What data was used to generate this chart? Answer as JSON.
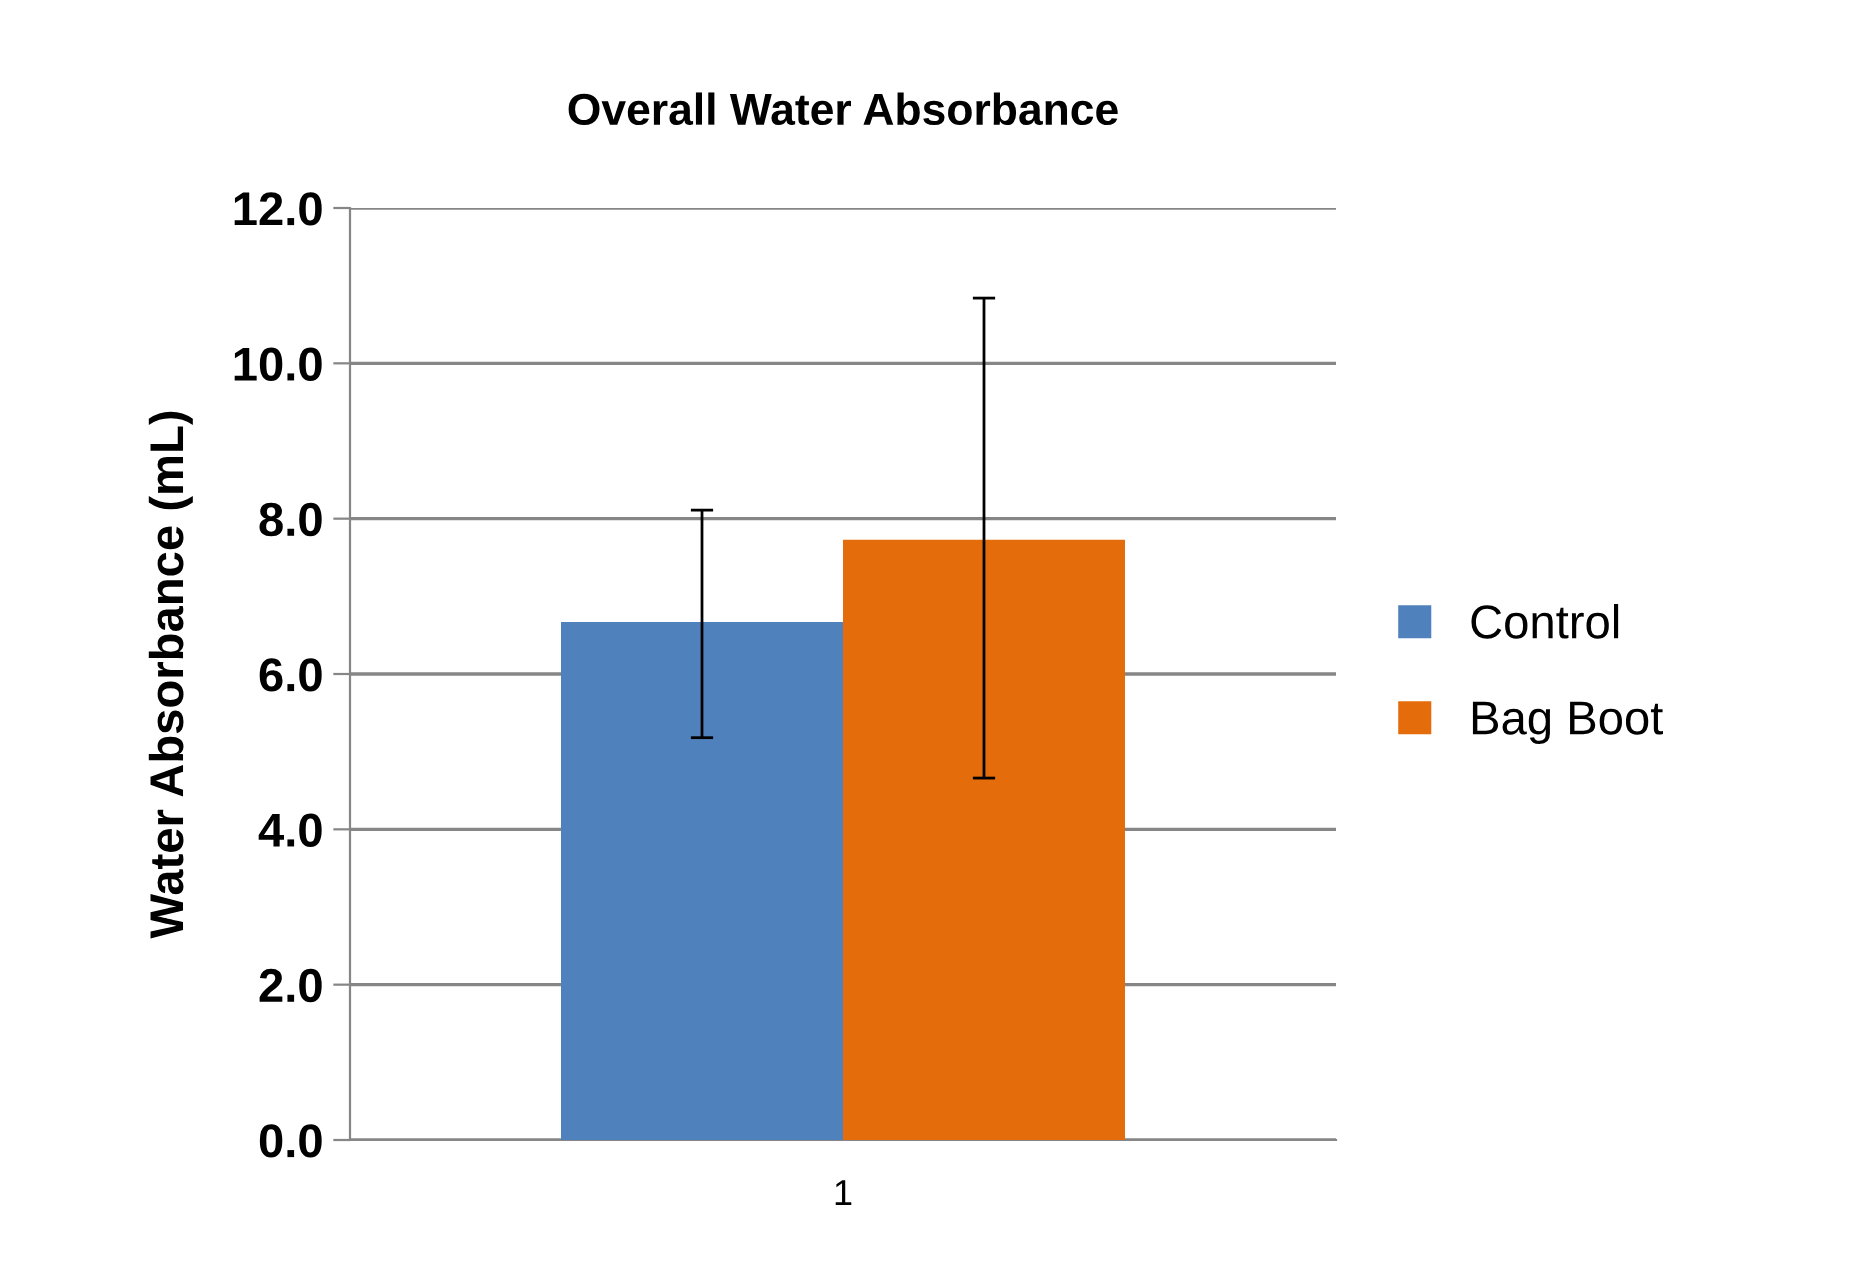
{
  "chart_data": {
    "type": "bar",
    "title": "Overall Water Absorbance",
    "ylabel": "Water Absorbance (mL)",
    "categories": [
      "1"
    ],
    "series": [
      {
        "name": "Control",
        "color": "#4f81bd",
        "values": [
          6.67
        ],
        "errors": [
          [
            5.18,
            8.11
          ]
        ]
      },
      {
        "name": "Bag Boot",
        "color": "#e46c0a",
        "values": [
          7.73
        ],
        "errors": [
          [
            4.66,
            10.84
          ]
        ]
      }
    ],
    "ylim": [
      0,
      12
    ],
    "yticks": [
      {
        "value": 0,
        "label": "0.0"
      },
      {
        "value": 2,
        "label": "2.0"
      },
      {
        "value": 4,
        "label": "4.0"
      },
      {
        "value": 6,
        "label": "6.0"
      },
      {
        "value": 8,
        "label": "8.0"
      },
      {
        "value": 10,
        "label": "10.0"
      },
      {
        "value": 12,
        "label": "12.0"
      }
    ],
    "grid": "y",
    "legend": "right"
  }
}
